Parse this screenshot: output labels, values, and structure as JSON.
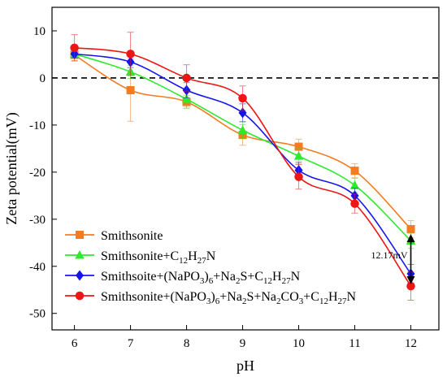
{
  "chart_data": {
    "type": "line",
    "xlabel": "pH",
    "ylabel": "Zeta potential(mV)",
    "x": [
      6,
      7,
      8,
      9,
      10,
      11,
      12
    ],
    "xlim": [
      5.6,
      12.5
    ],
    "ylim": [
      -53.5,
      15
    ],
    "x_ticks": [
      6,
      7,
      8,
      9,
      10,
      11,
      12
    ],
    "y_ticks": [
      10,
      0,
      -10,
      -20,
      -30,
      -40,
      -50
    ],
    "grid": false,
    "zero_line": {
      "y": 0,
      "style": "dashed"
    },
    "legend_position": "bottom-left",
    "series": [
      {
        "name": "Smithsonite",
        "label_parts": [
          {
            "t": "Smithsonite"
          }
        ],
        "color": "#f47b20",
        "marker": "square",
        "values": [
          4.9,
          -2.6,
          -5.1,
          -12.1,
          -14.6,
          -19.7,
          -32.1
        ],
        "errors": [
          1.2,
          6.6,
          1.4,
          2.2,
          1.6,
          1.5,
          1.8
        ]
      },
      {
        "name": "Smithsonite+C12H27N",
        "label_parts": [
          {
            "t": "Smithsonite+C"
          },
          {
            "t": "12",
            "sub": true
          },
          {
            "t": "H"
          },
          {
            "t": "27",
            "sub": true
          },
          {
            "t": "N"
          }
        ],
        "color": "#2eea2e",
        "marker": "triangle",
        "values": [
          5.1,
          1.3,
          -4.5,
          -11.1,
          -16.6,
          -22.8,
          -34.6
        ],
        "errors": [
          0.9,
          1.4,
          1.7,
          1.8,
          1.6,
          1.5,
          1.6
        ]
      },
      {
        "name": "Smithsoite+(NaPO3)6+Na2S+C12H27N",
        "label_parts": [
          {
            "t": "Smithsoite+(NaPO"
          },
          {
            "t": "3",
            "sub": true
          },
          {
            "t": ")"
          },
          {
            "t": "6",
            "sub": true
          },
          {
            "t": "+Na"
          },
          {
            "t": "2",
            "sub": true
          },
          {
            "t": "S+C"
          },
          {
            "t": "12",
            "sub": true
          },
          {
            "t": "H"
          },
          {
            "t": "27",
            "sub": true
          },
          {
            "t": "N"
          }
        ],
        "color": "#1414ee",
        "marker": "diamond",
        "values": [
          5.1,
          3.4,
          -2.6,
          -7.4,
          -19.6,
          -25.0,
          -41.6
        ],
        "errors": [
          0.8,
          1.2,
          1.6,
          1.9,
          1.7,
          1.6,
          2.0
        ]
      },
      {
        "name": "Smithsonite+(NaPO3)6+Na2S+Na2CO3+C12H27N",
        "label_parts": [
          {
            "t": "Smithsonite+(NaPO"
          },
          {
            "t": "3",
            "sub": true
          },
          {
            "t": ")"
          },
          {
            "t": "6",
            "sub": true
          },
          {
            "t": "+Na"
          },
          {
            "t": "2",
            "sub": true
          },
          {
            "t": "S+Na"
          },
          {
            "t": "2",
            "sub": true
          },
          {
            "t": "CO"
          },
          {
            "t": "3",
            "sub": true
          },
          {
            "t": "+C"
          },
          {
            "t": "12",
            "sub": true
          },
          {
            "t": "H"
          },
          {
            "t": "27",
            "sub": true
          },
          {
            "t": "N"
          }
        ],
        "color": "#ee1515",
        "marker": "circle",
        "values": [
          6.4,
          5.1,
          0.0,
          -4.3,
          -21.0,
          -26.7,
          -44.2
        ],
        "errors": [
          2.8,
          4.6,
          2.8,
          2.6,
          2.6,
          2.0,
          3.0
        ]
      }
    ],
    "annotations": [
      {
        "text": "12.17mV",
        "x": 12,
        "y_from": -33.5,
        "y_to": -43.5
      }
    ]
  }
}
